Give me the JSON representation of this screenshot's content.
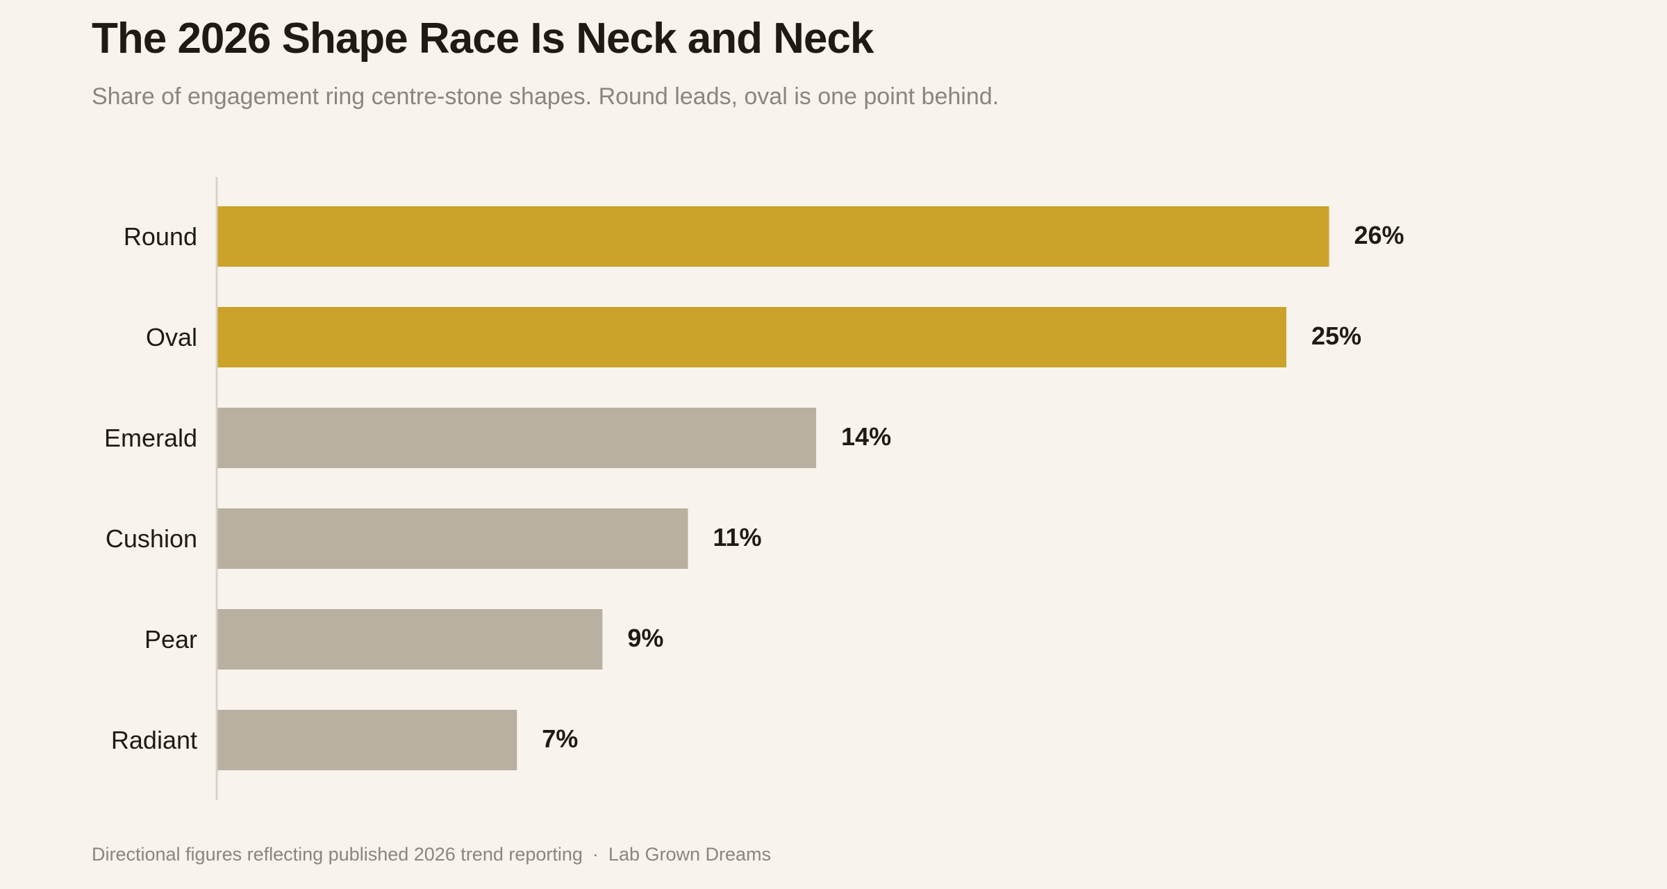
{
  "header": {
    "title": "The 2026 Shape Race Is Neck and Neck",
    "subtitle": "Share of engagement ring centre-stone shapes. Round leads, oval is one point behind."
  },
  "footer": {
    "note": "Directional figures reflecting published 2026 trend reporting",
    "separator": "·",
    "source": "Lab Grown Dreams"
  },
  "colors": {
    "highlight": "#cba22a",
    "muted": "#b8b0a0",
    "axis": "#d8d2c8",
    "background": "#f8f4ed"
  },
  "chart_data": {
    "type": "bar",
    "orientation": "horizontal",
    "title": "The 2026 Shape Race Is Neck and Neck",
    "subtitle": "Share of engagement ring centre-stone shapes. Round leads, oval is one point behind.",
    "categories": [
      "Round",
      "Oval",
      "Emerald",
      "Cushion",
      "Pear",
      "Radiant"
    ],
    "values": [
      26,
      25,
      14,
      11,
      9,
      7
    ],
    "value_labels": [
      "26%",
      "25%",
      "14%",
      "11%",
      "9%",
      "7%"
    ],
    "highlighted": [
      "Round",
      "Oval"
    ],
    "unit": "%",
    "xlim": [
      0,
      26
    ],
    "grid": false,
    "legend": "none"
  }
}
